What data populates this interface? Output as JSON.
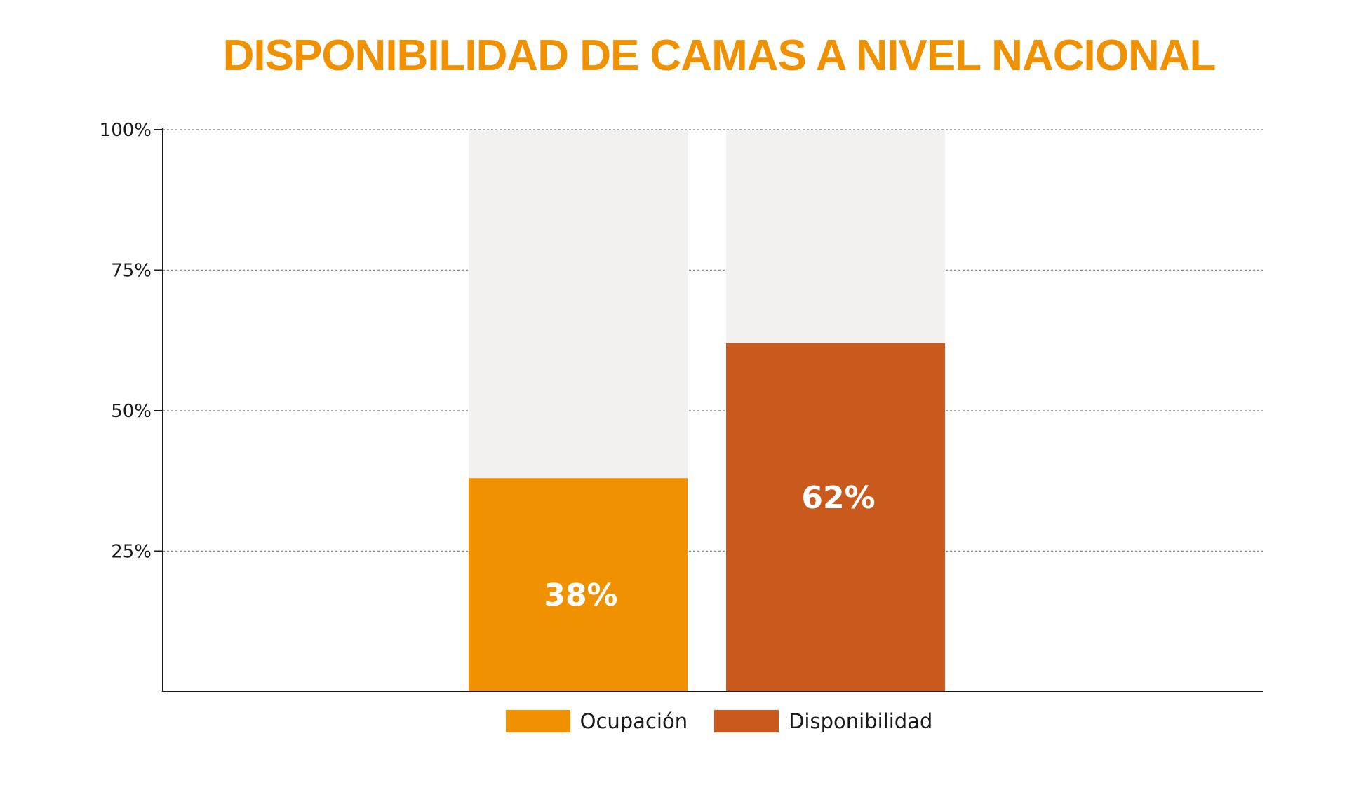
{
  "colors": {
    "title": "#ef9100",
    "background_bar": "#f2f1ef",
    "grid": "#8a8a8a",
    "axis": "#1a1a1a"
  },
  "chart_data": {
    "type": "bar",
    "title": "DISPONIBILIDAD DE CAMAS A NIVEL NACIONAL",
    "xlabel": "",
    "ylabel": "",
    "ylim": [
      0,
      100
    ],
    "y_ticks": [
      {
        "value": 100,
        "label": "100%"
      },
      {
        "value": 75,
        "label": "75%"
      },
      {
        "value": 50,
        "label": "50%"
      },
      {
        "value": 25,
        "label": "25%"
      }
    ],
    "grid": true,
    "legend_position": "bottom",
    "series": [
      {
        "name": "Ocupación",
        "value": 38,
        "label": "38%",
        "color": "#ef9100"
      },
      {
        "name": "Disponibilidad",
        "value": 62,
        "label": "62%",
        "color": "#c9591c"
      }
    ]
  }
}
